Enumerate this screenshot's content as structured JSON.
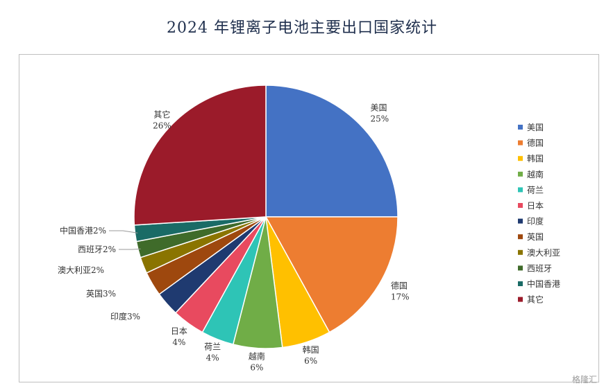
{
  "chart_data": {
    "type": "pie",
    "title": "2024 年锂离子电池主要出口国家统计",
    "legend_position": "right",
    "slices": [
      {
        "name": "美国",
        "value": 25,
        "label": "25%",
        "color": "#4472c4"
      },
      {
        "name": "德国",
        "value": 17,
        "label": "17%",
        "color": "#ed7d31"
      },
      {
        "name": "韩国",
        "value": 6,
        "label": "6%",
        "color": "#ffc000"
      },
      {
        "name": "越南",
        "value": 6,
        "label": "6%",
        "color": "#70ad47"
      },
      {
        "name": "荷兰",
        "value": 4,
        "label": "4%",
        "color": "#2ec4b6"
      },
      {
        "name": "日本",
        "value": 4,
        "label": "4%",
        "color": "#e84a5f"
      },
      {
        "name": "印度",
        "value": 3,
        "label": "3%",
        "color": "#1f3a70"
      },
      {
        "name": "英国",
        "value": 3,
        "label": "3%",
        "color": "#9e480e"
      },
      {
        "name": "澳大利亚",
        "value": 2,
        "label": "2%",
        "color": "#8a7400"
      },
      {
        "name": "西班牙",
        "value": 2,
        "label": "2%",
        "color": "#3f6b2a"
      },
      {
        "name": "中国香港",
        "value": 2,
        "label": "2%",
        "color": "#1a6b66"
      },
      {
        "name": "其它",
        "value": 26,
        "label": "26%",
        "color": "#9b1b2a"
      }
    ]
  },
  "watermark": "格隆汇"
}
